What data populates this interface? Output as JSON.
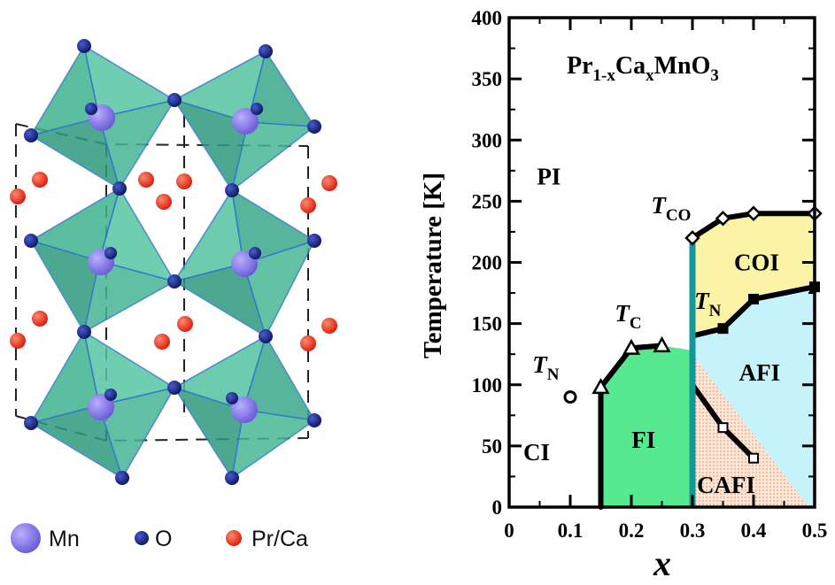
{
  "chart_data": {
    "type": "phase-diagram",
    "formula": {
      "base": "Pr",
      "sub1": "1-x",
      "mid": "Ca",
      "sub2": "x",
      "tail": "MnO",
      "sub3": "3"
    },
    "xlabel": "x",
    "ylabel": "Temperature [K]",
    "xlim": [
      0,
      0.5
    ],
    "ylim": [
      0,
      400
    ],
    "x_ticks": [
      "0",
      "0.1",
      "0.2",
      "0.3",
      "0.4",
      "0.5"
    ],
    "y_ticks": [
      "0",
      "50",
      "100",
      "150",
      "200",
      "250",
      "300",
      "350",
      "400"
    ],
    "x_tick_values": [
      0,
      0.1,
      0.2,
      0.3,
      0.4,
      0.5
    ],
    "y_tick_values": [
      0,
      50,
      100,
      150,
      200,
      250,
      300,
      350,
      400
    ],
    "region_labels": {
      "PI": {
        "text": "PI",
        "x": 0.065,
        "y": 270
      },
      "CI": {
        "text": "CI",
        "x": 0.045,
        "y": 45
      },
      "FI": {
        "text": "FI",
        "x": 0.22,
        "y": 55
      },
      "COI": {
        "text": "COI",
        "x": 0.405,
        "y": 200
      },
      "AFI": {
        "text": "AFI",
        "x": 0.41,
        "y": 110
      },
      "CAFI": {
        "text": "CAFI",
        "x": 0.355,
        "y": 18
      }
    },
    "transition_labels": {
      "TN_left": {
        "text": "T",
        "sub": "N",
        "x": 0.06,
        "y": 110
      },
      "TC": {
        "text": "T",
        "sub": "C",
        "x": 0.195,
        "y": 152
      },
      "TCO": {
        "text": "T",
        "sub": "CO",
        "x": 0.265,
        "y": 240
      },
      "TN_right": {
        "text": "T",
        "sub": "N",
        "x": 0.325,
        "y": 162
      }
    },
    "series": [
      {
        "marker": "triangle",
        "x": [
          0.15,
          0.2,
          0.25
        ],
        "y": [
          98,
          130,
          132
        ]
      },
      {
        "marker": "diamond",
        "x": [
          0.3,
          0.35,
          0.4,
          0.5
        ],
        "y": [
          220,
          236,
          240,
          240
        ]
      },
      {
        "marker": "filled-square",
        "x": [
          0.3,
          0.35,
          0.4,
          0.5
        ],
        "y": [
          140,
          146,
          170,
          180
        ]
      },
      {
        "marker": "open-square",
        "x": [
          0.3,
          0.35,
          0.4
        ],
        "y": [
          100,
          65,
          40
        ]
      },
      {
        "marker": "open-circle",
        "x": [
          0.1
        ],
        "y": [
          90
        ]
      }
    ],
    "colors": {
      "COI": "#fbf3a5",
      "AFI": "#c6f2fa",
      "FI": "#56e98f",
      "CAFI": "#f6d4bf",
      "boundary_x03": "#15969a",
      "line": "#000000"
    }
  },
  "legend": {
    "items": [
      {
        "label": "Mn",
        "color": "#7c6fe0"
      },
      {
        "label": "O",
        "color": "#15216e"
      },
      {
        "label": "Pr/Ca",
        "color": "#e12a18"
      }
    ]
  }
}
